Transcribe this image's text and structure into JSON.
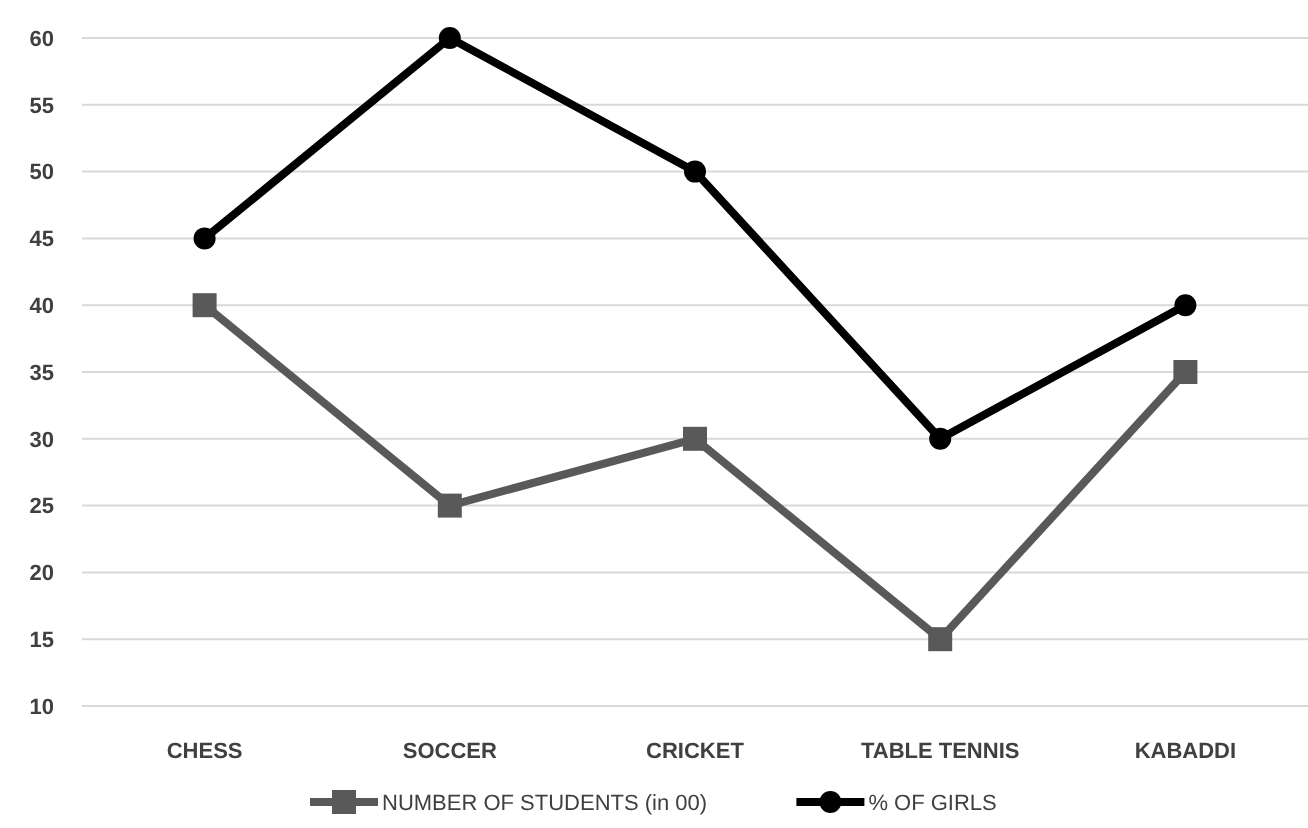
{
  "chart_data": {
    "type": "line",
    "categories": [
      "CHESS",
      "SOCCER",
      "CRICKET",
      "TABLE TENNIS",
      "KABADDI"
    ],
    "series": [
      {
        "name": "NUMBER OF STUDENTS (in 00)",
        "color": "#595959",
        "marker": "square",
        "values": [
          40,
          25,
          30,
          15,
          35
        ]
      },
      {
        "name": "% OF GIRLS",
        "color": "#000000",
        "marker": "circle",
        "values": [
          45,
          60,
          50,
          30,
          40
        ]
      }
    ],
    "ylim": [
      10,
      60
    ],
    "yticks": [
      10,
      15,
      20,
      25,
      30,
      35,
      40,
      45,
      50,
      55,
      60
    ],
    "grid": "y",
    "legend": "bottom",
    "line_style": "solid"
  }
}
